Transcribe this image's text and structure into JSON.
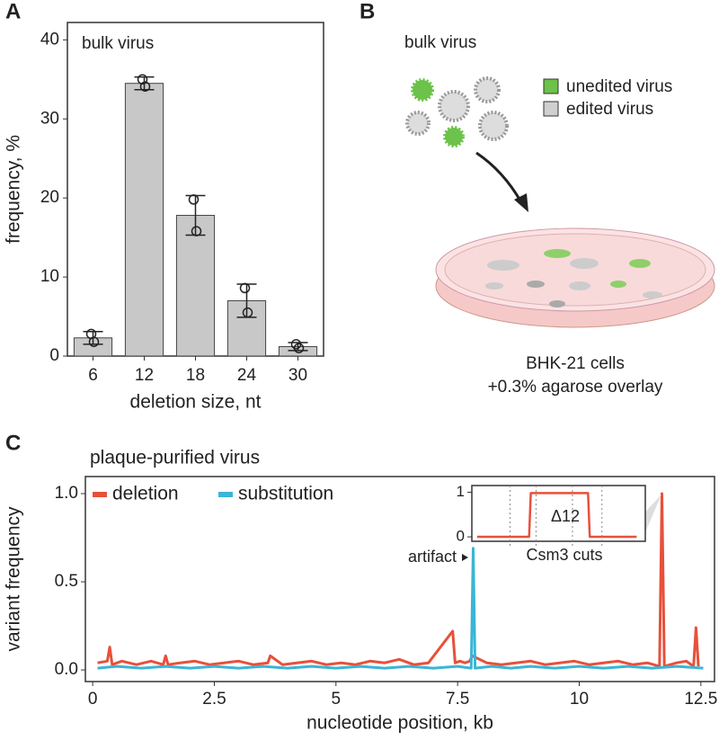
{
  "panel_labels": [
    "A",
    "B",
    "C"
  ],
  "diagram": {
    "title": "bulk virus",
    "legend": [
      {
        "label": "unedited virus",
        "color": "#6cc24a"
      },
      {
        "label": "edited virus",
        "color": "#cfcfcf"
      }
    ],
    "caption": [
      "BHK-21 cells",
      "+0.3% agarose overlay"
    ]
  },
  "chart_data": [
    {
      "type": "bar",
      "annotation": "bulk virus",
      "xlabel": "deletion size, nt",
      "ylabel": "frequency, %",
      "categories": [
        "6",
        "12",
        "18",
        "24",
        "30"
      ],
      "values": [
        2.3,
        34.5,
        17.8,
        7.0,
        1.2
      ],
      "errors": [
        0.8,
        0.8,
        2.5,
        2.1,
        0.5
      ],
      "points": [
        [
          2.8,
          1.8
        ],
        [
          35.0,
          34.1
        ],
        [
          19.8,
          15.8
        ],
        [
          8.6,
          5.5
        ],
        [
          1.5,
          1.0
        ]
      ],
      "color": "#c8c8c8",
      "ylim": [
        0,
        42.2
      ],
      "yticks": [
        0,
        10,
        20,
        30,
        40
      ]
    },
    {
      "type": "line",
      "title": "plaque-purified virus",
      "xlabel": "nucleotide position, kb",
      "ylabel": "variant frequency",
      "annotation": "artifact",
      "series": [
        {
          "name": "deletion",
          "color": "#e8503a",
          "x": [
            0.1,
            0.3,
            0.35,
            0.4,
            0.6,
            0.9,
            1.2,
            1.45,
            1.5,
            1.55,
            1.8,
            2.1,
            2.4,
            2.7,
            3.0,
            3.3,
            3.6,
            3.65,
            3.9,
            4.2,
            4.5,
            4.8,
            5.1,
            5.4,
            5.7,
            6.0,
            6.3,
            6.6,
            6.9,
            7.4,
            7.45,
            7.55,
            7.65,
            7.75,
            7.8,
            8.1,
            8.4,
            8.7,
            9.0,
            9.3,
            9.6,
            9.9,
            10.2,
            10.5,
            10.8,
            11.1,
            11.4,
            11.65,
            11.7,
            11.75,
            12.0,
            12.2,
            12.35,
            12.4,
            12.45
          ],
          "values": [
            0.04,
            0.05,
            0.13,
            0.03,
            0.05,
            0.03,
            0.05,
            0.03,
            0.08,
            0.03,
            0.04,
            0.05,
            0.03,
            0.04,
            0.05,
            0.03,
            0.04,
            0.08,
            0.03,
            0.04,
            0.05,
            0.03,
            0.04,
            0.03,
            0.05,
            0.04,
            0.06,
            0.03,
            0.04,
            0.22,
            0.04,
            0.05,
            0.04,
            0.05,
            0.08,
            0.04,
            0.03,
            0.04,
            0.05,
            0.03,
            0.04,
            0.05,
            0.03,
            0.04,
            0.05,
            0.03,
            0.04,
            0.02,
            1.0,
            0.02,
            0.04,
            0.05,
            0.02,
            0.24,
            0.02
          ]
        },
        {
          "name": "substitution",
          "color": "#3ab5d6",
          "x": [
            0.1,
            0.5,
            1.0,
            1.5,
            2.0,
            2.5,
            3.0,
            3.5,
            4.0,
            4.5,
            5.0,
            5.5,
            6.0,
            6.5,
            7.0,
            7.5,
            7.78,
            7.82,
            7.86,
            8.2,
            8.6,
            9.0,
            9.5,
            10.0,
            10.5,
            11.0,
            11.5,
            12.0,
            12.55
          ],
          "values": [
            0.01,
            0.02,
            0.01,
            0.02,
            0.01,
            0.02,
            0.01,
            0.02,
            0.01,
            0.02,
            0.01,
            0.02,
            0.01,
            0.02,
            0.01,
            0.02,
            0.01,
            0.69,
            0.01,
            0.02,
            0.01,
            0.02,
            0.01,
            0.02,
            0.01,
            0.02,
            0.01,
            0.02,
            0.01
          ]
        }
      ],
      "xlim": [
        -0.15,
        12.78
      ],
      "xticks": [
        0,
        2.5,
        5,
        7.5,
        10,
        12.5
      ],
      "ylim": [
        -0.066,
        1.097
      ],
      "yticks": [
        {
          "value": 0,
          "label": "0.0"
        },
        0.5,
        {
          "value": 1,
          "label": "1.0"
        }
      ]
    },
    {
      "type": "line",
      "annotation": "Δ12",
      "xlabel": "Csm3 cuts",
      "series": [
        {
          "name": null,
          "color": "#e8503a",
          "x": [
            0.3,
            3.3,
            3.4,
            5,
            6.7,
            6.8,
            9.5
          ],
          "values": [
            0,
            0,
            0.98,
            0.98,
            0.98,
            0,
            0
          ]
        }
      ],
      "cut_sites": [
        2.2,
        3.7,
        5.8,
        7.5
      ],
      "xlim": [
        0,
        10
      ],
      "ylim": [
        -0.1,
        1.15
      ],
      "yticks": [
        0,
        1
      ]
    }
  ]
}
